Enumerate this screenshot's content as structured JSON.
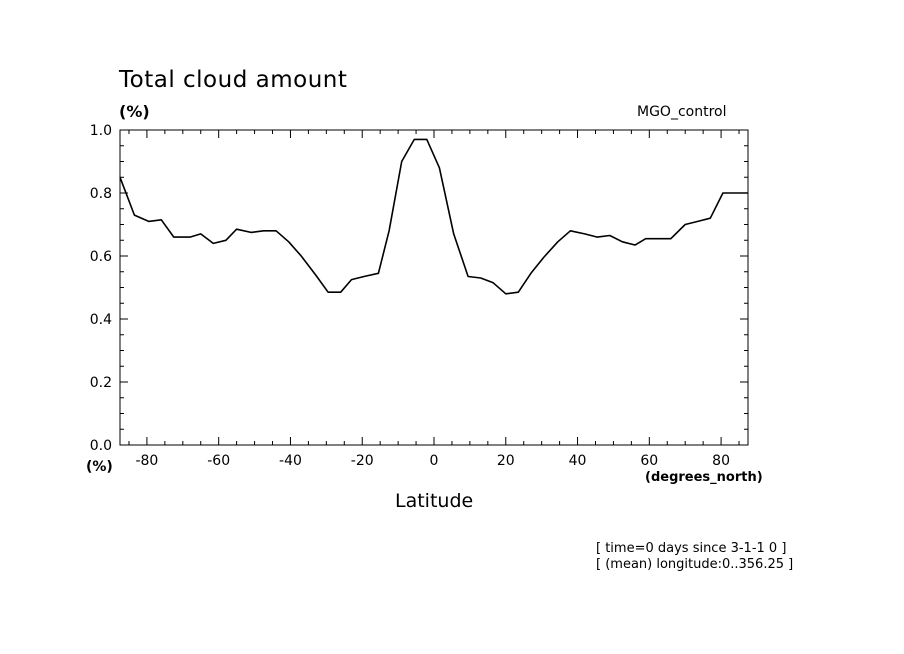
{
  "chart_data": {
    "type": "line",
    "title": "Total cloud amount",
    "y_unit": "(%)",
    "run_name": "MGO_control",
    "xlabel": "Latitude",
    "x_unit": "(degrees_north)",
    "notes": [
      "[ time=0 days since 3-1-1 0 ]",
      "[ (mean) longitude:0..356.25 ]"
    ],
    "xlim": [
      -87.5,
      87.5
    ],
    "ylim": [
      0.0,
      1.0
    ],
    "x_ticks": [
      -80,
      -60,
      -40,
      -20,
      0,
      20,
      40,
      60,
      80
    ],
    "x_tick_labels": [
      "-80",
      "-60",
      "-40",
      "-20",
      "0",
      "20",
      "40",
      "60",
      "80"
    ],
    "y_ticks": [
      0.0,
      0.2,
      0.4,
      0.6,
      0.8,
      1.0
    ],
    "y_tick_labels": [
      "0.0",
      "0.2",
      "0.4",
      "0.6",
      "0.8",
      "1.0"
    ],
    "grid": false,
    "series": [
      {
        "color": "#000000",
        "x": [
          -87.5,
          -83.5,
          -79.5,
          -76,
          -72.5,
          -68,
          -65,
          -61.5,
          -58,
          -55,
          -51,
          -47.5,
          -44,
          -40.5,
          -37,
          -33,
          -29.5,
          -26,
          -23,
          -19.5,
          -15.5,
          -12.5,
          -9,
          -5.5,
          -2,
          1.5,
          5.5,
          9.5,
          13,
          16.5,
          20,
          23.5,
          27,
          30.5,
          34.5,
          38,
          42,
          45.5,
          49,
          52.5,
          56,
          59,
          62.5,
          66,
          70,
          73.5,
          77,
          80.5,
          84,
          87.5
        ],
        "y": [
          0.85,
          0.73,
          0.71,
          0.715,
          0.66,
          0.66,
          0.67,
          0.64,
          0.65,
          0.685,
          0.675,
          0.68,
          0.68,
          0.645,
          0.6,
          0.54,
          0.485,
          0.485,
          0.525,
          0.535,
          0.545,
          0.68,
          0.9,
          0.97,
          0.97,
          0.88,
          0.67,
          0.535,
          0.53,
          0.515,
          0.48,
          0.485,
          0.545,
          0.595,
          0.645,
          0.68,
          0.67,
          0.66,
          0.665,
          0.645,
          0.635,
          0.655,
          0.655,
          0.655,
          0.7,
          0.71,
          0.72,
          0.8,
          0.8,
          0.8
        ]
      }
    ]
  }
}
